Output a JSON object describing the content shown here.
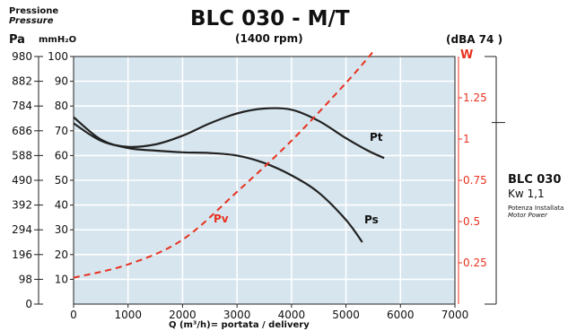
{
  "header": {
    "title": "BLC 030 - M/T",
    "subtitle": "(1400 rpm)",
    "noise": "(dBA 74 )",
    "pressure_label": "Pressione",
    "pressure_label_en": "Pressure",
    "unit_pa": "Pa",
    "unit_mmh2o": "mmH₂O",
    "unit_w": "W"
  },
  "side_panel": {
    "model": "BLC 030",
    "power": "Kw 1,1",
    "installed_power": "Potenza Installata",
    "installed_power_en": "Motor Power"
  },
  "colors": {
    "plot_bg": "#d6e5ee",
    "grid_line": "#ffffff",
    "curve": "#222222",
    "power_curve": "#e8311f",
    "power_axis": "#e8311f",
    "frame": "#222222"
  },
  "chart_data": {
    "type": "line",
    "xlabel": "Q (m³/h)= portata / delivery",
    "x_ticks": [
      0,
      1000,
      2000,
      3000,
      4000,
      5000,
      6000,
      7000
    ],
    "xlim": [
      0,
      7000
    ],
    "ylim_mmh2o": [
      0,
      100
    ],
    "y_ticks_mmh2o": [
      10,
      20,
      30,
      40,
      50,
      60,
      70,
      80,
      90,
      100
    ],
    "y_ticks_pa": [
      "0",
      "98",
      "196",
      "294",
      "392",
      "490",
      "588",
      "686",
      "784",
      "882",
      "980"
    ],
    "power_axis_ticks": [
      "0.25",
      "0.5",
      "0.75",
      "1",
      "1.25"
    ],
    "power_axis_range": [
      0,
      1.5
    ],
    "grid": true,
    "series": [
      {
        "name": "Pt",
        "axis": "mmH2O",
        "style": "solid",
        "x": [
          0,
          500,
          1000,
          1500,
          2000,
          2500,
          3000,
          3500,
          4000,
          4500,
          5000,
          5400,
          5700
        ],
        "y": [
          73,
          66,
          63.5,
          64.5,
          68,
          73,
          77,
          79,
          78.5,
          74,
          67,
          62,
          59
        ]
      },
      {
        "name": "Ps",
        "axis": "mmH2O",
        "style": "solid",
        "x": [
          0,
          500,
          1000,
          1500,
          2000,
          2500,
          3000,
          3500,
          4000,
          4500,
          5000,
          5300
        ],
        "y": [
          75.5,
          66.5,
          63,
          62,
          61.3,
          61,
          60,
          57,
          52,
          45,
          34,
          25
        ]
      },
      {
        "name": "Pv",
        "axis": "W",
        "style": "dashed",
        "x": [
          0,
          1000,
          2000,
          3000,
          4000,
          5000,
          5500
        ],
        "y": [
          0.16,
          0.24,
          0.39,
          0.68,
          0.99,
          1.34,
          1.53
        ]
      }
    ]
  }
}
